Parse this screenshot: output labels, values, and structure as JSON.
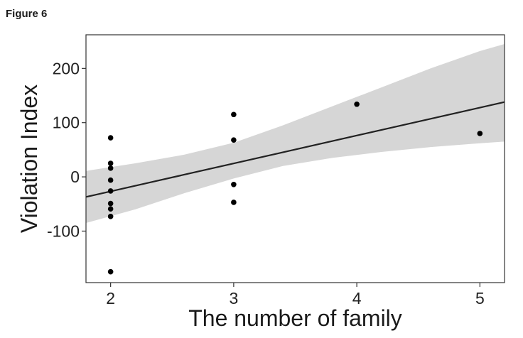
{
  "figure_label": "Figure 6",
  "chart_data": {
    "type": "scatter",
    "title": "",
    "xlabel": "The number of family",
    "ylabel": "Violation Index",
    "xlim": [
      1.8,
      5.2
    ],
    "ylim": [
      -195,
      262
    ],
    "x_ticks": [
      2,
      3,
      4,
      5
    ],
    "y_ticks": [
      200,
      100,
      0,
      -100
    ],
    "x_tick_labels": [
      "2",
      "3",
      "4",
      "5"
    ],
    "y_tick_labels": [
      "200",
      "100",
      "0",
      "-100"
    ],
    "grid": false,
    "legend": "none",
    "points": [
      {
        "x": 2,
        "y": 72
      },
      {
        "x": 2,
        "y": 25
      },
      {
        "x": 2,
        "y": 16
      },
      {
        "x": 2,
        "y": -6
      },
      {
        "x": 2,
        "y": -26
      },
      {
        "x": 2,
        "y": -49
      },
      {
        "x": 2,
        "y": -59
      },
      {
        "x": 2,
        "y": -73
      },
      {
        "x": 2,
        "y": -175
      },
      {
        "x": 3,
        "y": 115
      },
      {
        "x": 3,
        "y": 68
      },
      {
        "x": 3,
        "y": -14
      },
      {
        "x": 3,
        "y": -47
      },
      {
        "x": 4,
        "y": 134
      },
      {
        "x": 5,
        "y": 80
      }
    ],
    "fit_line": {
      "x": [
        1.8,
        5.2
      ],
      "y": [
        -37,
        138
      ]
    },
    "confidence_band": {
      "x": [
        1.8,
        2.2,
        2.6,
        3.0,
        3.4,
        3.8,
        4.2,
        4.6,
        5.0,
        5.2
      ],
      "upper": [
        11,
        25,
        41,
        63,
        95,
        130,
        165,
        200,
        232,
        245
      ],
      "lower": [
        -85,
        -60,
        -30,
        -3,
        20,
        35,
        46,
        55,
        62,
        65
      ]
    },
    "colors": {
      "point": "#000000",
      "line": "#222222",
      "band": "#d6d6d6",
      "frame": "#333333"
    }
  }
}
